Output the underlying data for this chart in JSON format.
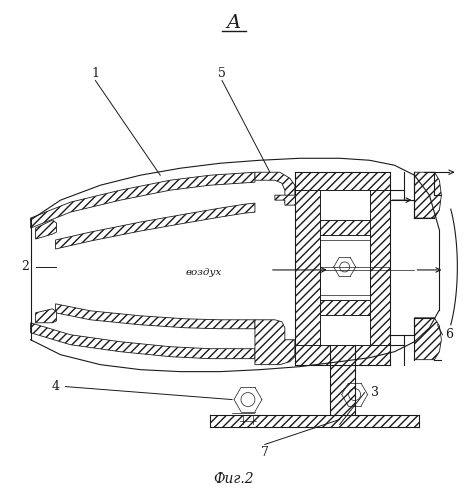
{
  "title_A": "A",
  "caption": "Фиг.2",
  "vozdukh": "воздух",
  "bg_color": "#ffffff",
  "line_color": "#1a1a1a"
}
